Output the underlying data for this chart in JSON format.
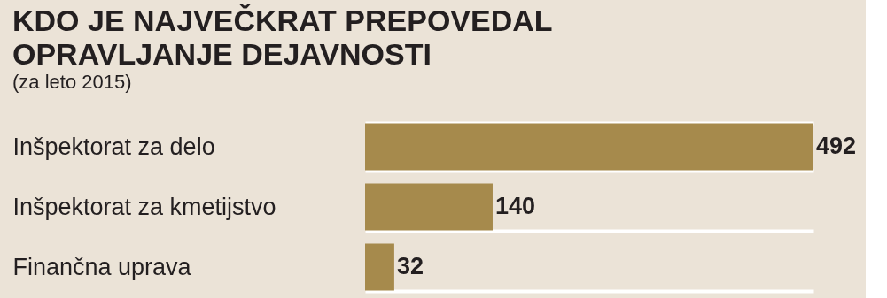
{
  "chart_data": {
    "type": "bar",
    "orientation": "horizontal",
    "title": "KDO JE NAJVEČKRAT PREPOVEDAL OPRAVLJANJE DEJAVNOSTI",
    "subtitle": "(za leto 2015)",
    "categories": [
      "Inšpektorat za delo",
      "Inšpektorat za kmetijstvo",
      "Finančna uprava"
    ],
    "values": [
      492,
      140,
      32
    ],
    "color": "#a68a4c",
    "data_labels": true,
    "grid": "y"
  }
}
